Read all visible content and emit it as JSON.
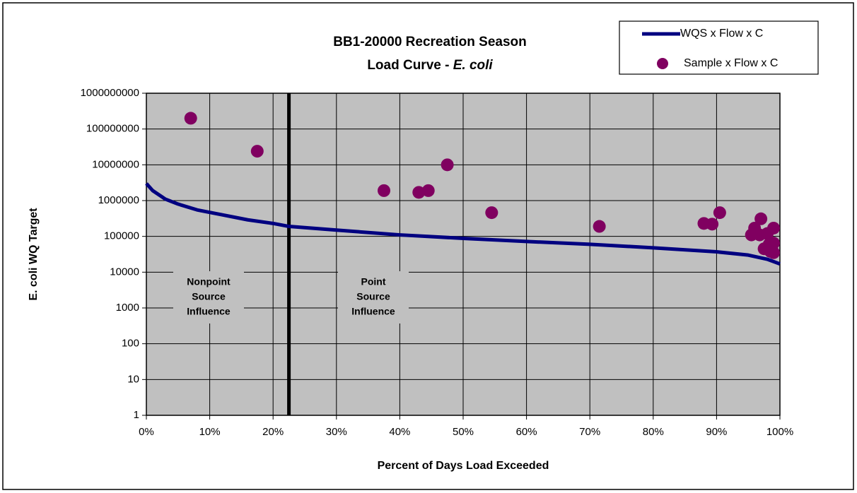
{
  "chart_data": {
    "type": "scatter",
    "title": "BB1-20000 Recreation Season",
    "title_line2": "Load Curve - ",
    "title_italic": "E. coli",
    "x_label": "Percent of Days Load Exceeded",
    "y_label": "E. coli WQ Target",
    "xlim": [
      0,
      100
    ],
    "xticks": [
      {
        "value": 0,
        "label": "0%"
      },
      {
        "value": 10,
        "label": "10%"
      },
      {
        "value": 20,
        "label": "20%"
      },
      {
        "value": 30,
        "label": "30%"
      },
      {
        "value": 40,
        "label": "40%"
      },
      {
        "value": 50,
        "label": "50%"
      },
      {
        "value": 60,
        "label": "60%"
      },
      {
        "value": 70,
        "label": "70%"
      },
      {
        "value": 80,
        "label": "80%"
      },
      {
        "value": 90,
        "label": "90%"
      },
      {
        "value": 100,
        "label": "100%"
      }
    ],
    "ylim": [
      1,
      1000000000
    ],
    "yticks": [
      1,
      10,
      100,
      1000,
      10000,
      100000,
      1000000,
      10000000,
      100000000,
      1000000000
    ],
    "log_y": true,
    "grid": true,
    "legend": "top-right",
    "vertical_line": 22.5,
    "annotations": [
      {
        "lines": [
          "Nonpoint",
          "Source",
          "Influence"
        ]
      },
      {
        "lines": [
          "Point",
          "Source",
          "Influence"
        ]
      }
    ],
    "series": [
      {
        "name": "WQS x Flow x C",
        "type": "line",
        "color": "#000080",
        "x": [
          0,
          1,
          3,
          5,
          8,
          12,
          16,
          20,
          22.5,
          30,
          40,
          50,
          60,
          70,
          80,
          90,
          95,
          98,
          100
        ],
        "values": [
          3000000,
          1900000,
          1100000,
          800000,
          550000,
          400000,
          290000,
          230000,
          190000,
          150000,
          110000,
          88000,
          72000,
          60000,
          48000,
          37000,
          30000,
          23000,
          17000
        ]
      },
      {
        "name": "Sample x Flow x C",
        "type": "scatter",
        "color": "#800060",
        "x": [
          7,
          17.5,
          37.5,
          43,
          44.5,
          47.5,
          54.5,
          71.5,
          88,
          89.3,
          90.5,
          95.5,
          96,
          96.8,
          97,
          97.5,
          98,
          98.3,
          98.5,
          99,
          99,
          99
        ],
        "values": [
          200000000,
          24000000,
          1900000,
          1700000,
          1900000,
          10000000,
          460000,
          190000,
          230000,
          220000,
          460000,
          110000,
          170000,
          110000,
          310000,
          45000,
          120000,
          60000,
          38000,
          170000,
          65000,
          35000
        ]
      }
    ]
  }
}
